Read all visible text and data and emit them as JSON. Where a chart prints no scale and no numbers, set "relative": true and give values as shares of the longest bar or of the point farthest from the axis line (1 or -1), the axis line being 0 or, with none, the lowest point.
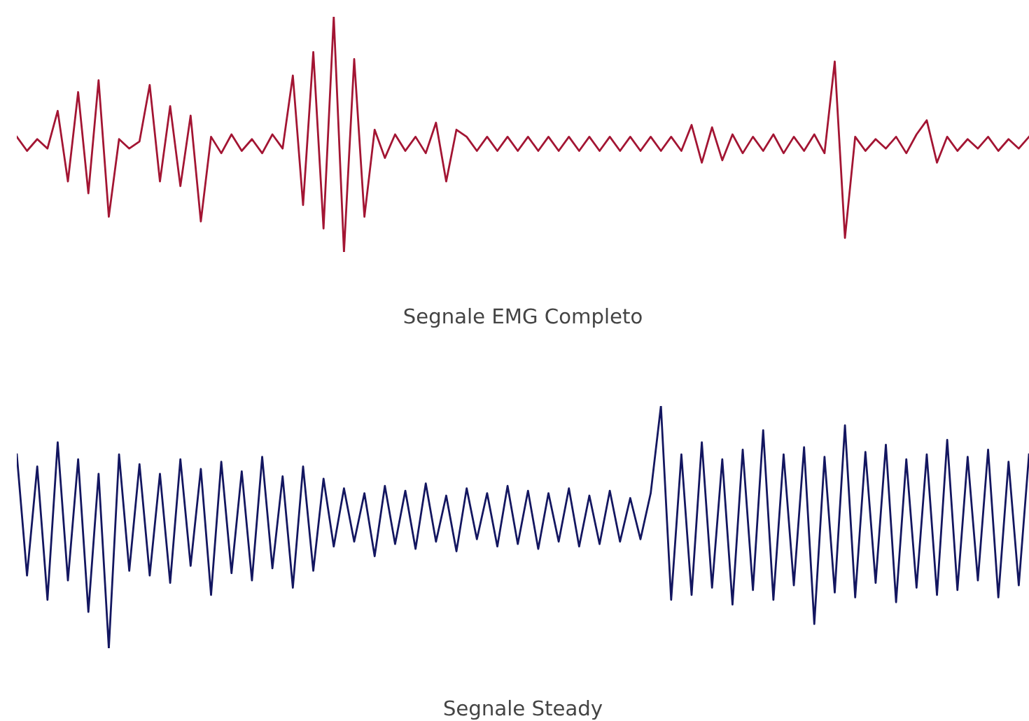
{
  "chart_data": [
    {
      "type": "line",
      "title": "Segnale EMG Completo",
      "relative": true,
      "categories": [
        null,
        null,
        null,
        null,
        null,
        null,
        null,
        null,
        null,
        null,
        null,
        null,
        null,
        null,
        null,
        null,
        null,
        null,
        null,
        null,
        null,
        null,
        null,
        null,
        null,
        null,
        null,
        null,
        null,
        null,
        null,
        null,
        null,
        null,
        null,
        null,
        null,
        null,
        null,
        null,
        null,
        null,
        null,
        null,
        null,
        null,
        null,
        null,
        null,
        null,
        null,
        null,
        null,
        null,
        null,
        null,
        null,
        null,
        null,
        null,
        null,
        null,
        null,
        null,
        null,
        null,
        null,
        null,
        null,
        null,
        null,
        null,
        null,
        null,
        null,
        null,
        null,
        null,
        null,
        null,
        null,
        null,
        null,
        null,
        null,
        null,
        null,
        null,
        null,
        null,
        null,
        null,
        null,
        null,
        null,
        null,
        null,
        null,
        null,
        null
      ],
      "series": [
        {
          "color": "#a31533",
          "values": [
            0.49,
            0.43,
            0.48,
            0.44,
            0.6,
            0.3,
            0.68,
            0.25,
            0.73,
            0.15,
            0.48,
            0.44,
            0.47,
            0.71,
            0.3,
            0.62,
            0.28,
            0.58,
            0.13,
            0.49,
            0.42,
            0.5,
            0.43,
            0.48,
            0.42,
            0.5,
            0.44,
            0.75,
            0.2,
            0.85,
            0.1,
            1.0,
            0.0,
            0.82,
            0.15,
            0.52,
            0.4,
            0.5,
            0.43,
            0.49,
            0.42,
            0.55,
            0.3,
            0.52,
            0.49,
            0.43,
            0.49,
            0.43,
            0.49,
            0.43,
            0.49,
            0.43,
            0.49,
            0.43,
            0.49,
            0.43,
            0.49,
            0.43,
            0.49,
            0.43,
            0.49,
            0.43,
            0.49,
            0.43,
            0.49,
            0.43,
            0.54,
            0.38,
            0.53,
            0.39,
            0.5,
            0.42,
            0.49,
            0.43,
            0.5,
            0.42,
            0.49,
            0.43,
            0.5,
            0.42,
            0.81,
            0.06,
            0.49,
            0.43,
            0.48,
            0.44,
            0.49,
            0.42,
            0.5,
            0.56,
            0.38,
            0.49,
            0.43,
            0.48,
            0.44,
            0.49,
            0.43,
            0.48,
            0.44,
            0.49
          ]
        }
      ]
    },
    {
      "type": "line",
      "title": "Segnale Steady",
      "relative": true,
      "categories": [
        null,
        null,
        null,
        null,
        null,
        null,
        null,
        null,
        null,
        null,
        null,
        null,
        null,
        null,
        null,
        null,
        null,
        null,
        null,
        null,
        null,
        null,
        null,
        null,
        null,
        null,
        null,
        null,
        null,
        null,
        null,
        null,
        null,
        null,
        null,
        null,
        null,
        null,
        null,
        null,
        null,
        null,
        null,
        null,
        null,
        null,
        null,
        null,
        null,
        null,
        null,
        null,
        null,
        null,
        null,
        null,
        null,
        null,
        null,
        null,
        null,
        null,
        null,
        null,
        null,
        null,
        null,
        null,
        null,
        null,
        null,
        null,
        null,
        null,
        null,
        null,
        null,
        null,
        null,
        null,
        null,
        null,
        null,
        null,
        null,
        null,
        null,
        null,
        null,
        null,
        null,
        null,
        null,
        null,
        null,
        null,
        null,
        null,
        null,
        null
      ],
      "series": [
        {
          "color": "#131660",
          "values": [
            0.8,
            0.3,
            0.75,
            0.2,
            0.85,
            0.28,
            0.78,
            0.15,
            0.72,
            0.0,
            0.8,
            0.32,
            0.76,
            0.3,
            0.72,
            0.27,
            0.78,
            0.34,
            0.74,
            0.22,
            0.77,
            0.31,
            0.73,
            0.28,
            0.79,
            0.33,
            0.71,
            0.25,
            0.75,
            0.32,
            0.7,
            0.42,
            0.66,
            0.44,
            0.64,
            0.38,
            0.67,
            0.43,
            0.65,
            0.41,
            0.68,
            0.44,
            0.63,
            0.4,
            0.66,
            0.45,
            0.64,
            0.42,
            0.67,
            0.43,
            0.65,
            0.41,
            0.64,
            0.44,
            0.66,
            0.42,
            0.63,
            0.43,
            0.65,
            0.44,
            0.62,
            0.45,
            0.64,
            1.0,
            0.2,
            0.8,
            0.22,
            0.85,
            0.25,
            0.78,
            0.18,
            0.82,
            0.24,
            0.9,
            0.2,
            0.8,
            0.26,
            0.83,
            0.1,
            0.79,
            0.23,
            0.92,
            0.21,
            0.81,
            0.27,
            0.84,
            0.19,
            0.78,
            0.25,
            0.8,
            0.22,
            0.86,
            0.24,
            0.79,
            0.28,
            0.82,
            0.21,
            0.77,
            0.26,
            0.8
          ]
        }
      ]
    }
  ]
}
